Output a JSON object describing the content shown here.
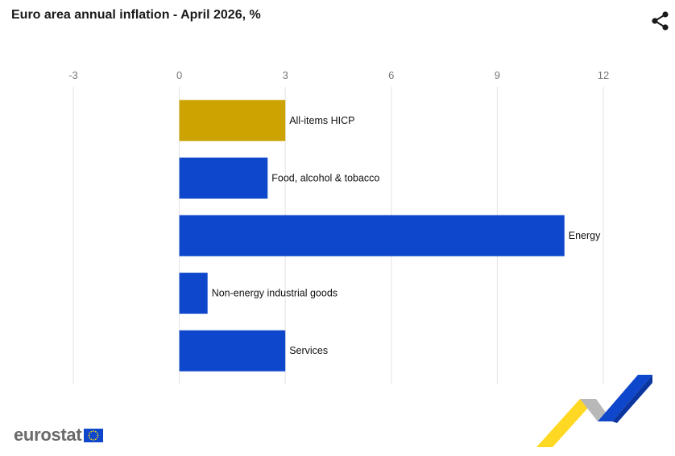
{
  "header": {
    "title": "Euro area annual inflation - April 2026, %"
  },
  "icons": {
    "share": "share-icon",
    "flag": "eu-flag-icon",
    "ribbon": "decorative-ribbon-icon"
  },
  "branding": {
    "logo_text": "eurostat"
  },
  "colors": {
    "highlight": "#CCA300",
    "bar": "#0E47CB",
    "grid": "#E3E3E3",
    "tick": "#777777"
  },
  "chart_data": {
    "type": "bar",
    "orientation": "horizontal",
    "title": "Euro area annual inflation - April 2026, %",
    "xlabel": "",
    "ylabel": "",
    "categories": [
      "All-items HICP",
      "Food, alcohol & tobacco",
      "Energy",
      "Non-energy industrial goods",
      "Services"
    ],
    "values": [
      3.0,
      2.5,
      10.9,
      0.8,
      3.0
    ],
    "highlight_index": 0,
    "xlim": [
      -3,
      12
    ],
    "xticks": [
      "-3",
      "0",
      "3",
      "6",
      "9",
      "12"
    ],
    "grid": true,
    "legend": "none"
  }
}
